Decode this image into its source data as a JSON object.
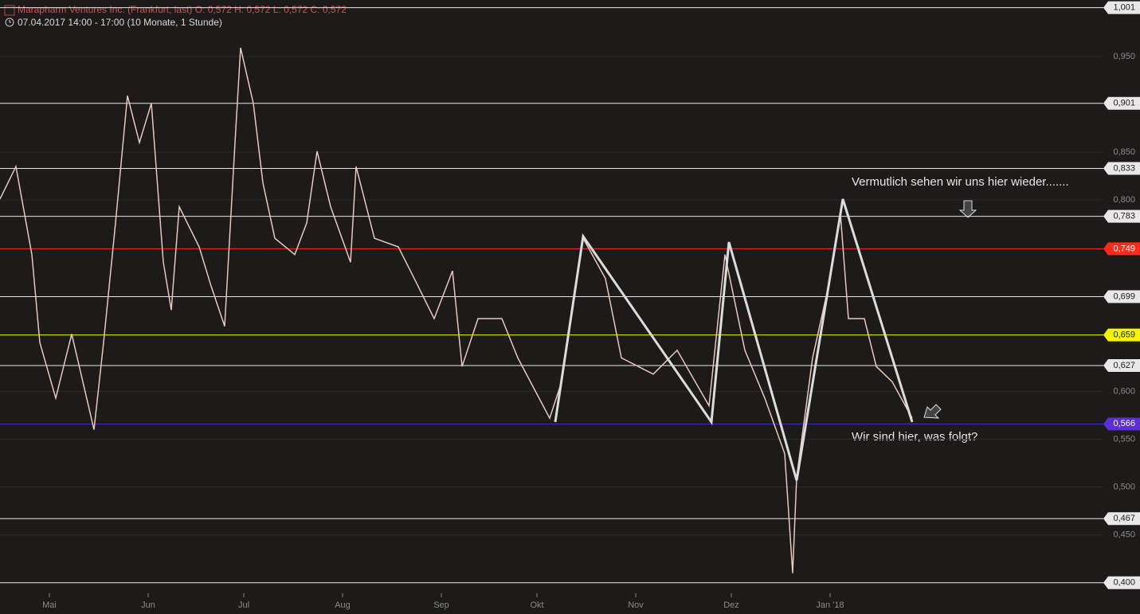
{
  "chart_data": {
    "type": "line",
    "title": "Marapharm Ventures Inc. (Frankfurt, last)  O: 0,572  H: 0,572  L: 0,572  C: 0,572",
    "subtitle": "07.04.2017 14:00 - 17:00   (10 Monate, 1 Stunde)",
    "annotations": [
      "Vermutlich sehen wir uns hier wieder.......",
      "Wir sind hier, was folgt?"
    ],
    "xlim": [
      -15.5,
      330.75
    ],
    "ylim": [
      0.389,
      1.009
    ],
    "xticks": [
      {
        "value": 0,
        "label": "Mai"
      },
      {
        "value": 31,
        "label": "Jun"
      },
      {
        "value": 61,
        "label": "Jul"
      },
      {
        "value": 92,
        "label": "Aug"
      },
      {
        "value": 123,
        "label": "Sep"
      },
      {
        "value": 153,
        "label": "Okt"
      },
      {
        "value": 184,
        "label": "Nov"
      },
      {
        "value": 214,
        "label": "Dez"
      },
      {
        "value": 245,
        "label": "Jan '18"
      }
    ],
    "yticks": [
      {
        "value": 0.45,
        "label": "0,450"
      },
      {
        "value": 0.5,
        "label": "0,500"
      },
      {
        "value": 0.55,
        "label": "0,550"
      },
      {
        "value": 0.6,
        "label": "0,600"
      },
      {
        "value": 0.8,
        "label": "0,800"
      },
      {
        "value": 0.85,
        "label": "0,850"
      },
      {
        "value": 0.95,
        "label": "0,950"
      }
    ],
    "levels": [
      {
        "value": 1.001,
        "label": "1,001",
        "color": "#e8e8e8"
      },
      {
        "value": 0.901,
        "label": "0,901",
        "color": "#e8e8e8"
      },
      {
        "value": 0.833,
        "label": "0,833",
        "color": "#e8e8e8"
      },
      {
        "value": 0.783,
        "label": "0,783",
        "color": "#e8e8e8"
      },
      {
        "value": 0.749,
        "label": "0,749",
        "color": "#ff2a1a"
      },
      {
        "value": 0.699,
        "label": "0,699",
        "color": "#e8e8e8"
      },
      {
        "value": 0.659,
        "label": "0,659",
        "color": "#f4f400"
      },
      {
        "value": 0.627,
        "label": "0,627",
        "color": "#e8e8e8"
      },
      {
        "value": 0.566,
        "label": "0,566",
        "color": "#3a2fd8"
      },
      {
        "value": 0.467,
        "label": "0,467",
        "color": "#e8e8e8"
      },
      {
        "value": 0.4,
        "label": "0,400",
        "color": "#e8e8e8"
      }
    ],
    "series": [
      {
        "name": "Marapharm Ventures Inc.",
        "color": "#e8c8c0",
        "x": [
          -15.5,
          -10.5,
          -5.5,
          -3,
          2,
          7,
          14,
          17,
          20.75,
          24.5,
          28.25,
          32,
          35.75,
          38.25,
          40.75,
          47,
          50.75,
          55,
          58.25,
          60,
          64,
          67,
          70.75,
          77,
          80.75,
          84,
          88.25,
          94.5,
          96.25,
          102,
          109.5,
          114.5,
          120.75,
          126.5,
          129.5,
          134.5,
          142,
          147,
          157,
          160.75,
          167.5,
          174.5,
          179.5,
          189.5,
          197,
          207,
          212,
          218.25,
          224.5,
          230.75,
          233.25,
          234.5,
          239.5,
          244.5,
          248.25,
          250.75,
          255.75,
          259.5,
          264.5,
          270.75
        ],
        "values": [
          0.801,
          0.835,
          0.743,
          0.651,
          0.593,
          0.66,
          0.56,
          0.651,
          0.776,
          0.909,
          0.86,
          0.901,
          0.735,
          0.685,
          0.793,
          0.751,
          0.71,
          0.668,
          0.86,
          0.959,
          0.901,
          0.818,
          0.76,
          0.743,
          0.776,
          0.851,
          0.793,
          0.735,
          0.835,
          0.76,
          0.751,
          0.718,
          0.676,
          0.726,
          0.626,
          0.676,
          0.676,
          0.635,
          0.572,
          0.61,
          0.76,
          0.718,
          0.635,
          0.618,
          0.643,
          0.585,
          0.743,
          0.643,
          0.593,
          0.535,
          0.41,
          0.51,
          0.635,
          0.71,
          0.785,
          0.676,
          0.676,
          0.626,
          0.61,
          0.572
        ]
      },
      {
        "name": "Pattern",
        "color": "#dcdcdc",
        "x": [
          158.75,
          167.5,
          207.75,
          213.25,
          234.5,
          249,
          270.75
        ],
        "values": [
          0.568,
          0.762,
          0.568,
          0.756,
          0.507,
          0.801,
          0.568
        ]
      }
    ]
  }
}
